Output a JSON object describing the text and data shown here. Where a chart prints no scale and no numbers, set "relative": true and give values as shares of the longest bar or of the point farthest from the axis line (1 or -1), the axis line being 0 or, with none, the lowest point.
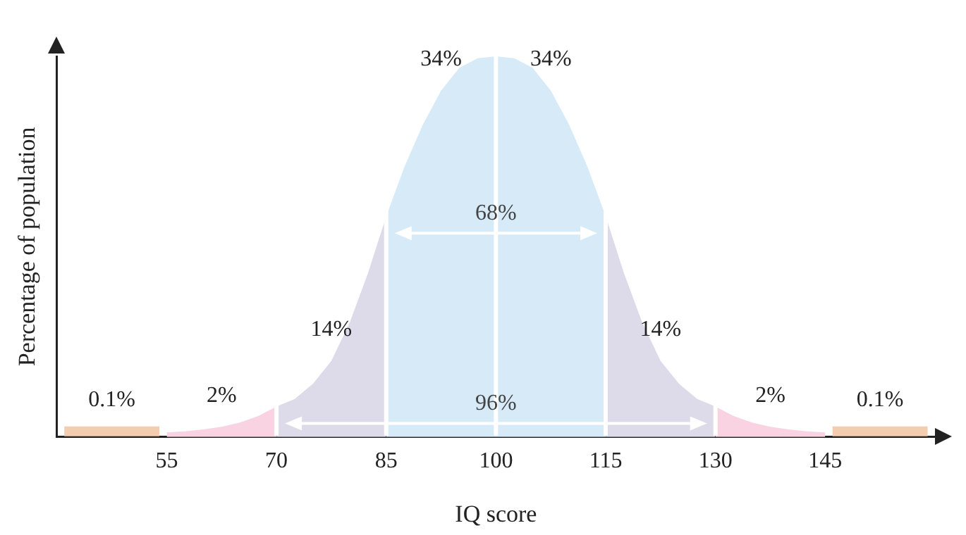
{
  "chart_data": {
    "type": "area",
    "xlabel": "IQ score",
    "ylabel": "Percentage of population",
    "relative": true,
    "grid": false,
    "legend": false,
    "xlim": [
      40,
      160
    ],
    "xticks": [
      55,
      70,
      85,
      100,
      115,
      130,
      145
    ],
    "series": [
      {
        "type": "line",
        "color": "#f2cdb0",
        "x": [
          41,
          47.5,
          54
        ],
        "values": [
          0.015,
          0.015,
          0.015
        ]
      },
      {
        "color": "#fad3e3",
        "x": [
          55,
          57.5,
          60,
          62.5,
          65,
          67.5,
          70
        ],
        "values": [
          0.012,
          0.015,
          0.02,
          0.027,
          0.038,
          0.055,
          0.08
        ]
      },
      {
        "color": "#dddbea",
        "x": [
          70,
          72.5,
          75,
          77.5,
          80,
          82.5,
          85
        ],
        "values": [
          0.08,
          0.1,
          0.14,
          0.2,
          0.3,
          0.43,
          0.58
        ]
      },
      {
        "color": "#d6eaf8",
        "x": [
          85,
          87.5,
          90,
          92.5,
          95,
          97.5,
          100,
          102.5,
          105,
          107.5,
          110,
          112.5,
          115
        ],
        "values": [
          0.58,
          0.71,
          0.82,
          0.91,
          0.97,
          0.995,
          1,
          0.995,
          0.97,
          0.91,
          0.82,
          0.71,
          0.58
        ]
      },
      {
        "color": "#dddbea",
        "x": [
          115,
          117.5,
          120,
          122.5,
          125,
          127.5,
          130
        ],
        "values": [
          0.58,
          0.43,
          0.3,
          0.2,
          0.14,
          0.1,
          0.08
        ]
      },
      {
        "color": "#fad3e3",
        "x": [
          130,
          132.5,
          135,
          137.5,
          140,
          142.5,
          145
        ],
        "values": [
          0.08,
          0.055,
          0.038,
          0.027,
          0.02,
          0.015,
          0.012
        ]
      },
      {
        "type": "line",
        "color": "#f2cdb0",
        "x": [
          146,
          152.5,
          159
        ],
        "values": [
          0.015,
          0.015,
          0.015
        ]
      }
    ],
    "ref_lines": [
      {
        "axis": "x",
        "value": 70,
        "color": "#ffffff"
      },
      {
        "axis": "x",
        "value": 85,
        "color": "#ffffff"
      },
      {
        "axis": "x",
        "value": 100,
        "color": "#ffffff"
      },
      {
        "axis": "x",
        "value": 115,
        "color": "#ffffff"
      },
      {
        "axis": "x",
        "value": 130,
        "color": "#ffffff"
      }
    ],
    "annotations": [
      {
        "text": "0.1%",
        "x": 47.5,
        "y": 0.015
      },
      {
        "text": "2%",
        "x": 62.5,
        "y": 0.027
      },
      {
        "text": "14%",
        "x": 77.5,
        "y": 0.2
      },
      {
        "text": "34%",
        "x": 92.5,
        "y": 0.91
      },
      "68%",
      "96%",
      {
        "text": "34%",
        "x": 107.5,
        "y": 0.91
      },
      {
        "text": "14%",
        "x": 122.5,
        "y": 0.2
      },
      {
        "text": "2%",
        "x": 137.5,
        "y": 0.027
      },
      {
        "text": "0.1%",
        "x": 152.5,
        "y": 0.015
      }
    ]
  }
}
